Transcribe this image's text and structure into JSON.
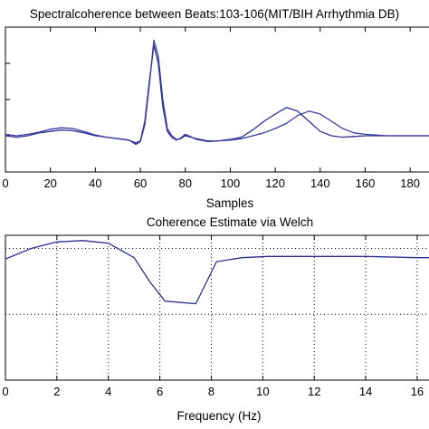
{
  "chart_data": [
    {
      "type": "line",
      "title": "Spectralcoherence between Beats:103-106(MIT/BIH Arrhythmia DB)",
      "xlabel": "Samples",
      "ylabel": "",
      "xlim": [
        0,
        190
      ],
      "ylim": [
        -0.5,
        1.5
      ],
      "xticks": [
        "0",
        "20",
        "40",
        "60",
        "80",
        "100",
        "120",
        "140",
        "160",
        "180"
      ],
      "grid": false,
      "series": [
        {
          "color": "#2e2e8f",
          "x": [
            0,
            5,
            10,
            15,
            20,
            25,
            30,
            35,
            40,
            45,
            50,
            55,
            58,
            60,
            62,
            64,
            66,
            68,
            70,
            72,
            74,
            76,
            78,
            80,
            85,
            90,
            95,
            100,
            105,
            110,
            115,
            120,
            125,
            130,
            135,
            140,
            145,
            150,
            155,
            160,
            170,
            180,
            190
          ],
          "y": [
            0.0,
            -0.02,
            0.0,
            0.04,
            0.06,
            0.08,
            0.07,
            0.04,
            0.0,
            -0.02,
            -0.04,
            -0.06,
            -0.1,
            -0.07,
            0.2,
            0.75,
            1.25,
            1.0,
            0.4,
            0.06,
            -0.02,
            -0.06,
            -0.03,
            0.02,
            -0.05,
            -0.08,
            -0.07,
            -0.05,
            -0.02,
            0.08,
            0.2,
            0.3,
            0.39,
            0.34,
            0.2,
            0.06,
            0.0,
            -0.02,
            -0.01,
            0.0,
            0.0,
            0.0,
            0.0
          ]
        },
        {
          "color": "#3a3aa5",
          "x": [
            0,
            5,
            10,
            15,
            20,
            25,
            30,
            35,
            40,
            45,
            50,
            55,
            58,
            60,
            62,
            64,
            66,
            68,
            70,
            72,
            74,
            76,
            78,
            80,
            85,
            90,
            95,
            100,
            105,
            110,
            115,
            120,
            125,
            130,
            135,
            140,
            145,
            150,
            155,
            160,
            170,
            180,
            190
          ],
          "y": [
            0.02,
            0.0,
            0.02,
            0.05,
            0.09,
            0.11,
            0.1,
            0.06,
            0.01,
            -0.02,
            -0.04,
            -0.06,
            -0.12,
            -0.08,
            0.15,
            0.7,
            1.32,
            1.1,
            0.5,
            0.1,
            0.0,
            -0.05,
            -0.04,
            0.0,
            -0.04,
            -0.07,
            -0.07,
            -0.06,
            -0.04,
            0.0,
            0.04,
            0.1,
            0.17,
            0.28,
            0.34,
            0.3,
            0.2,
            0.1,
            0.04,
            0.02,
            0.0,
            0.0,
            0.0
          ]
        }
      ]
    },
    {
      "type": "line",
      "title": "Coherence Estimate via Welch",
      "xlabel": "Frequency (Hz)",
      "ylabel": "",
      "xlim": [
        0,
        16.6
      ],
      "ylim": [
        0,
        1.1
      ],
      "xticks": [
        "0",
        "2",
        "4",
        "6",
        "8",
        "10",
        "12",
        "14",
        "16"
      ],
      "grid": true,
      "series": [
        {
          "color": "#2e2e8f",
          "x": [
            0,
            1,
            2,
            3,
            4,
            5,
            5.6,
            6.2,
            7.4,
            8.2,
            9.2,
            10.2,
            12,
            14,
            16,
            16.6
          ],
          "y": [
            0.92,
            1.0,
            1.05,
            1.06,
            1.04,
            0.93,
            0.75,
            0.6,
            0.58,
            0.9,
            0.93,
            0.94,
            0.94,
            0.94,
            0.93,
            0.93
          ]
        }
      ]
    }
  ]
}
